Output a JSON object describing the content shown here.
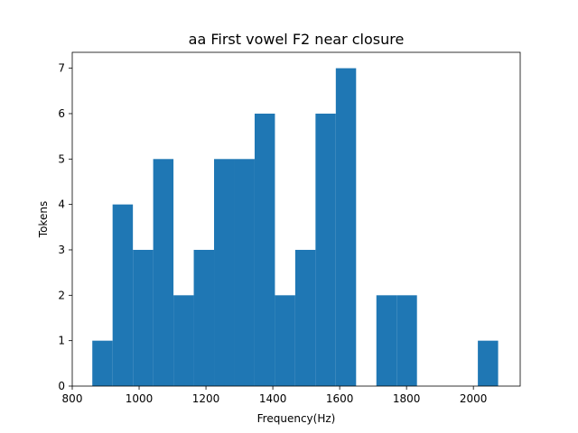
{
  "chart_data": {
    "type": "bar",
    "title": "aa First vowel F2 near closure",
    "xlabel": "Frequency(Hz)",
    "ylabel": "Tokens",
    "xlim": [
      800,
      2140
    ],
    "ylim": [
      0,
      7.35
    ],
    "xticks": [
      800,
      1000,
      1200,
      1400,
      1600,
      1800,
      2000
    ],
    "yticks": [
      0,
      1,
      2,
      3,
      4,
      5,
      6,
      7
    ],
    "grid": false,
    "legend": "none",
    "bar_color": "#1f77b4",
    "bin_edges": [
      860,
      920.7,
      981.4,
      1042.1,
      1102.8,
      1163.5,
      1224.2,
      1284.9,
      1345.6,
      1406.3,
      1467,
      1527.7,
      1588.4,
      1649.1,
      1709.8,
      1770.5,
      1831.2,
      1891.9,
      1952.6,
      2013.3,
      2074
    ],
    "values": [
      1,
      4,
      3,
      5,
      2,
      3,
      5,
      5,
      6,
      2,
      3,
      6,
      7,
      0,
      2,
      2,
      0,
      0,
      0,
      1
    ]
  }
}
